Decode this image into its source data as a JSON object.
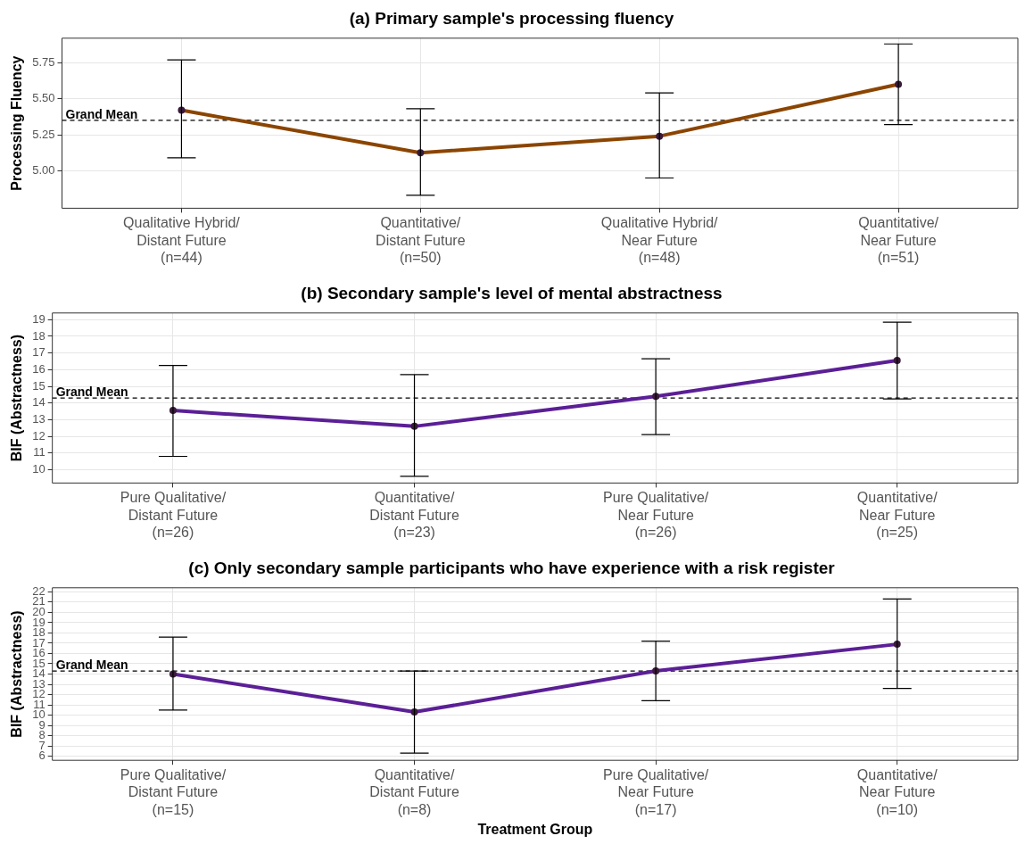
{
  "chart_data": [
    {
      "type": "line",
      "title": "(a) Primary sample's processing fluency",
      "ylabel": "Processing Fluency",
      "categories": [
        "Qualitative Hybrid/\nDistant Future\n(n=44)",
        "Quantitative/\nDistant Future\n(n=50)",
        "Qualitative Hybrid/\nNear Future\n(n=48)",
        "Quantitative/\nNear Future\n(n=51)"
      ],
      "series": [
        {
          "color": "#8b4500",
          "values": [
            5.42,
            5.125,
            5.24,
            5.6
          ],
          "errors": [
            [
              5.09,
              5.77
            ],
            [
              4.83,
              5.43
            ],
            [
              4.95,
              5.54
            ],
            [
              5.32,
              5.88
            ]
          ]
        }
      ],
      "ylim": [
        4.74,
        5.92
      ],
      "yticks": [
        {
          "value": 5,
          "label": "5.00"
        },
        5.25,
        {
          "value": 5.5,
          "label": "5.50"
        },
        5.75
      ],
      "ref_lines": [
        {
          "axis": "y",
          "value": 5.35,
          "label": "Grand Mean",
          "line_style": "dashed",
          "color": "#000000"
        }
      ],
      "grid": true,
      "legend": false,
      "marker": "circle",
      "line_style": "solid"
    },
    {
      "type": "line",
      "title": "(b) Secondary sample's level of mental abstractness",
      "ylabel": "BIF (Abstractness)",
      "categories": [
        "Pure Qualitative/\nDistant Future\n(n=26)",
        "Quantitative/\nDistant Future\n(n=23)",
        "Pure Qualitative/\nNear Future\n(n=26)",
        "Quantitative/\nNear Future\n(n=25)"
      ],
      "series": [
        {
          "color": "#5b1f96",
          "values": [
            13.55,
            12.6,
            14.4,
            16.55
          ],
          "errors": [
            [
              10.8,
              16.25
            ],
            [
              9.6,
              15.7
            ],
            [
              12.1,
              16.65
            ],
            [
              14.25,
              18.85
            ]
          ]
        }
      ],
      "ylim": [
        9.2,
        19.4
      ],
      "yticks": [
        10,
        11,
        12,
        13,
        14,
        15,
        16,
        17,
        18,
        19
      ],
      "ref_lines": [
        {
          "axis": "y",
          "value": 14.3,
          "label": "Grand Mean",
          "line_style": "dashed",
          "color": "#000000"
        }
      ],
      "grid": true,
      "legend": false,
      "marker": "circle",
      "line_style": "solid"
    },
    {
      "type": "line",
      "title": "(c) Only secondary sample participants who have experience with a risk register",
      "ylabel": "BIF (Abstractness)",
      "xlabel": "Treatment Group",
      "categories": [
        "Pure Qualitative/\nDistant Future\n(n=15)",
        "Quantitative/\nDistant Future\n(n=8)",
        "Pure Qualitative/\nNear Future\n(n=17)",
        "Quantitative/\nNear Future\n(n=10)"
      ],
      "series": [
        {
          "color": "#5b1f96",
          "values": [
            14.0,
            10.3,
            14.3,
            16.9
          ],
          "errors": [
            [
              10.5,
              17.6
            ],
            [
              6.3,
              14.3
            ],
            [
              11.4,
              17.2
            ],
            [
              12.6,
              21.3
            ]
          ]
        }
      ],
      "ylim": [
        5.6,
        22.4
      ],
      "yticks": [
        6,
        7,
        8,
        9,
        10,
        11,
        12,
        13,
        14,
        15,
        16,
        17,
        18,
        19,
        20,
        21,
        22
      ],
      "ref_lines": [
        {
          "axis": "y",
          "value": 14.3,
          "label": "Grand Mean",
          "line_style": "dashed",
          "color": "#000000"
        }
      ],
      "grid": true,
      "legend": false,
      "marker": "circle",
      "line_style": "solid"
    }
  ]
}
